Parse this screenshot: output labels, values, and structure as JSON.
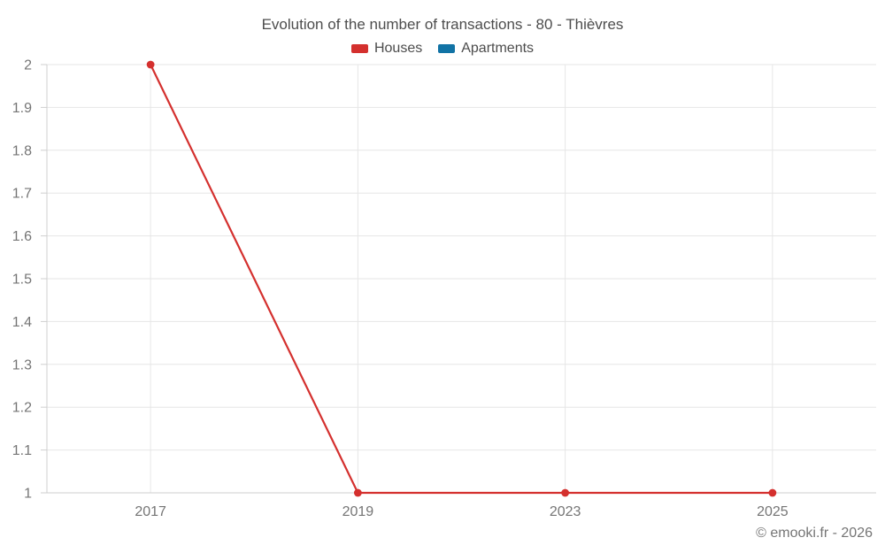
{
  "chart_data": {
    "type": "line",
    "title": "Evolution of the number of transactions - 80 - Thièvres",
    "xlabel": "",
    "ylabel": "",
    "categories": [
      "2017",
      "2019",
      "2023",
      "2025"
    ],
    "series": [
      {
        "name": "Houses",
        "color": "#d4302e",
        "values": [
          2,
          1,
          1,
          1
        ]
      },
      {
        "name": "Apartments",
        "color": "#1173a5",
        "values": []
      }
    ],
    "ylim": [
      1,
      2
    ],
    "ytick_step": 0.1,
    "ytick_labels": [
      "1",
      "1.1",
      "1.2",
      "1.3",
      "1.4",
      "1.5",
      "1.6",
      "1.7",
      "1.8",
      "1.9",
      "2"
    ],
    "legend_position": "top",
    "grid": true
  },
  "footer": {
    "copyright": "© emooki.fr - 2026"
  },
  "colors": {
    "title_text": "#4d4d4d",
    "legend_text": "#4c4c4c",
    "axis_tick_label": "#757575",
    "gridline": "#e6e6e6",
    "axis_line": "#cfcfcf",
    "copyright_text": "#757575",
    "background": "#ffffff"
  }
}
